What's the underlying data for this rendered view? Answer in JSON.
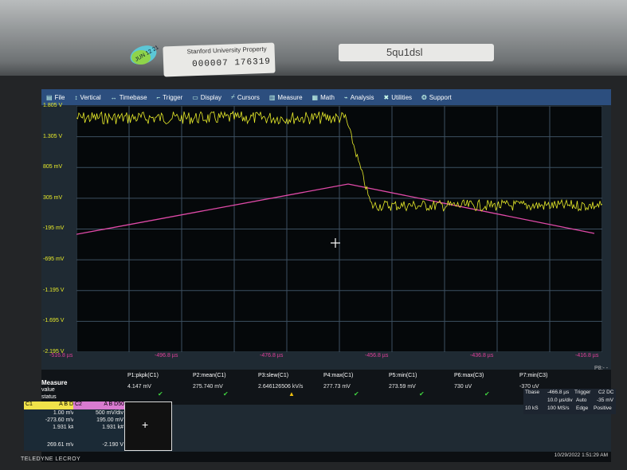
{
  "bezel": {
    "sticker_title": "Stanford University Property",
    "asset_number": "000007 176319",
    "dot_text": "JUN 12 21",
    "tag_text": "5qu1dsl"
  },
  "menu": [
    {
      "icon": "file-icon",
      "glyph": "▤",
      "label": "File"
    },
    {
      "icon": "vertical-icon",
      "glyph": "↕",
      "label": "Vertical"
    },
    {
      "icon": "timebase-icon",
      "glyph": "↔",
      "label": "Timebase"
    },
    {
      "icon": "trigger-icon",
      "glyph": "⌐",
      "label": "Trigger"
    },
    {
      "icon": "display-icon",
      "glyph": "▭",
      "label": "Display"
    },
    {
      "icon": "cursors-icon",
      "glyph": "⌿",
      "label": "Cursors"
    },
    {
      "icon": "measure-icon",
      "glyph": "▥",
      "label": "Measure"
    },
    {
      "icon": "math-icon",
      "glyph": "▦",
      "label": "Math"
    },
    {
      "icon": "analysis-icon",
      "glyph": "⌁",
      "label": "Analysis"
    },
    {
      "icon": "utilities-icon",
      "glyph": "✖",
      "label": "Utilities"
    },
    {
      "icon": "support-icon",
      "glyph": "❂",
      "label": "Support"
    }
  ],
  "y_labels": [
    "1.805 V",
    "1.305 V",
    "805 mV",
    "305 mV",
    "-195 mV",
    "-695 mV",
    "-1.195 V",
    "-1.695 V",
    "-2.195 V"
  ],
  "x_labels": [
    "-516.8 µs",
    "-496.8 µs",
    "-476.8 µs",
    "-456.8 µs",
    "-436.8 µs",
    "-416.8 µs"
  ],
  "p8": "P8:- - -",
  "measure": {
    "title": "Measure",
    "row_value": "value",
    "row_status": "status",
    "params": [
      {
        "name": "P1:pkpk(C1)",
        "value": "4.147 mV",
        "status": "ok"
      },
      {
        "name": "P2:mean(C1)",
        "value": "275.740 mV",
        "status": "ok"
      },
      {
        "name": "P3:slew(C1)",
        "value": "2.646126506 kV/s",
        "status": "warn"
      },
      {
        "name": "P4:max(C1)",
        "value": "277.73 mV",
        "status": "ok"
      },
      {
        "name": "P5:min(C1)",
        "value": "273.59 mV",
        "status": "ok"
      },
      {
        "name": "P6:max(C3)",
        "value": "730 uV",
        "status": "ok"
      },
      {
        "name": "P7:min(C3)",
        "value": "-370 uV",
        "status": "ok"
      }
    ]
  },
  "channels": {
    "c1": {
      "label": "C1",
      "badges": "A B DI",
      "rows": [
        "1.00 mV",
        "-273.60 mV",
        "1.931 k#"
      ],
      "footer": "269.61 mV"
    },
    "c2": {
      "label": "C2",
      "badges": "A B D50",
      "rows": [
        "500 mV/div",
        "195.00 mV",
        "1.931 k#"
      ],
      "footer": "-2.190 V"
    }
  },
  "timebase": {
    "label": "Tbase",
    "offset": "-466.8 µs",
    "trigger_label": "Trigger",
    "trigger_ch": "C2 DC",
    "per_div": "10.0 µs/div",
    "mode": "Auto",
    "level": "-35 mV",
    "samples": "10 kS",
    "rate": "100 MS/s",
    "type": "Edge",
    "slope": "Positive"
  },
  "status": {
    "brand": "TELEDYNE LECROY",
    "datetime": "10/29/2022 1:51:29 AM"
  },
  "colors": {
    "trace_c1": "#e8ec2a",
    "trace_c3": "#e04aa8",
    "menubar": "#2c4e7e",
    "grid": "#3d5061"
  }
}
